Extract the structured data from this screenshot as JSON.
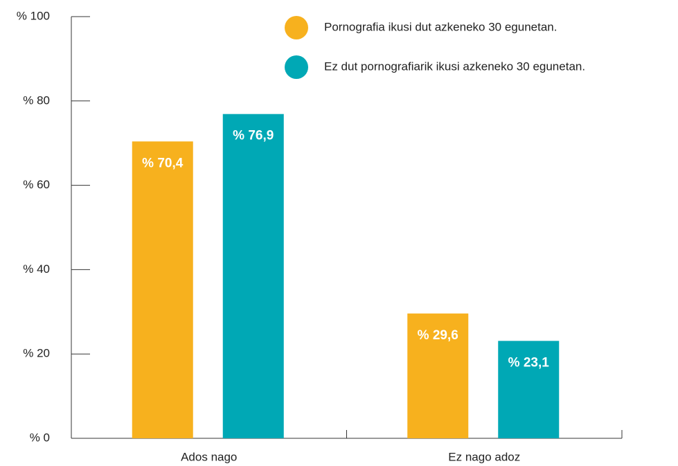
{
  "chart_data": {
    "type": "bar",
    "categories": [
      "Ados nago",
      "Ez nago adoz"
    ],
    "series": [
      {
        "name": "Pornografia ikusi dut azkeneko 30 egunetan.",
        "color": "#f7b11e",
        "values": [
          70.4,
          29.6
        ],
        "value_labels": [
          "% 70,4",
          "% 29,6"
        ]
      },
      {
        "name": "Ez dut pornografiarik ikusi azkeneko 30 egunetan.",
        "color": "#00a8b5",
        "values": [
          76.9,
          23.1
        ],
        "value_labels": [
          "% 76,9",
          "% 23,1"
        ]
      }
    ],
    "ylim": [
      0,
      100
    ],
    "yticks": [
      {
        "value": 0,
        "label": "% 0"
      },
      {
        "value": 20,
        "label": "% 20"
      },
      {
        "value": 40,
        "label": "% 40"
      },
      {
        "value": 60,
        "label": "% 60"
      },
      {
        "value": 80,
        "label": "% 80"
      },
      {
        "value": 100,
        "label": "% 100"
      }
    ],
    "legend": "top-right"
  }
}
